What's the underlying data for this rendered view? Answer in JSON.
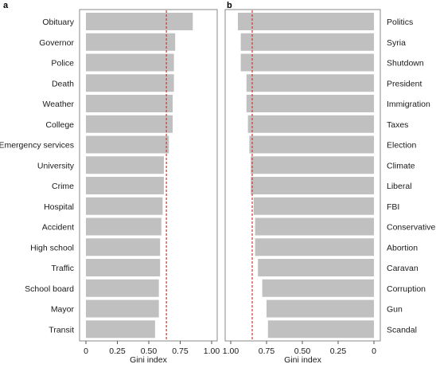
{
  "chart_data": [
    {
      "panel_label": "a",
      "type": "bar",
      "orientation": "horizontal",
      "categories": [
        "Obituary",
        "Governor",
        "Police",
        "Death",
        "Weather",
        "College",
        "Emergency services",
        "University",
        "Crime",
        "Hospital",
        "Accident",
        "High school",
        "Traffic",
        "School board",
        "Mayor",
        "Transit"
      ],
      "values": [
        0.85,
        0.71,
        0.7,
        0.7,
        0.69,
        0.69,
        0.66,
        0.62,
        0.62,
        0.61,
        0.6,
        0.59,
        0.59,
        0.58,
        0.58,
        0.55
      ],
      "reference_line": 0.64,
      "xlabel": "Gini index",
      "xlim": [
        0,
        1.0
      ],
      "xticks": [
        0,
        0.25,
        0.5,
        0.75,
        1.0
      ],
      "xtick_labels": [
        "0",
        "0.25",
        "0.50",
        "0.75",
        "1.00"
      ],
      "axis_direction": "normal",
      "category_labels_side": "left",
      "grid": false,
      "bar_color": "#c0c0c0",
      "reference_line_color": "#d9342b"
    },
    {
      "panel_label": "b",
      "type": "bar",
      "orientation": "horizontal",
      "categories": [
        "Politics",
        "Syria",
        "Shutdown",
        "President",
        "Immigration",
        "Taxes",
        "Election",
        "Climate",
        "Liberal",
        "FBI",
        "Conservative",
        "Abortion",
        "Caravan",
        "Corruption",
        "Gun",
        "Scandal"
      ],
      "values": [
        0.95,
        0.93,
        0.93,
        0.89,
        0.89,
        0.88,
        0.87,
        0.86,
        0.86,
        0.84,
        0.83,
        0.83,
        0.81,
        0.78,
        0.75,
        0.74
      ],
      "reference_line": 0.85,
      "xlabel": "Gini index",
      "xlim": [
        0,
        1.0
      ],
      "xticks": [
        1.0,
        0.75,
        0.5,
        0.25,
        0
      ],
      "xtick_labels": [
        "1.00",
        "0.75",
        "0.50",
        "0.25",
        "0"
      ],
      "axis_direction": "reversed",
      "category_labels_side": "right",
      "grid": false,
      "bar_color": "#c0c0c0",
      "reference_line_color": "#d9342b"
    }
  ]
}
